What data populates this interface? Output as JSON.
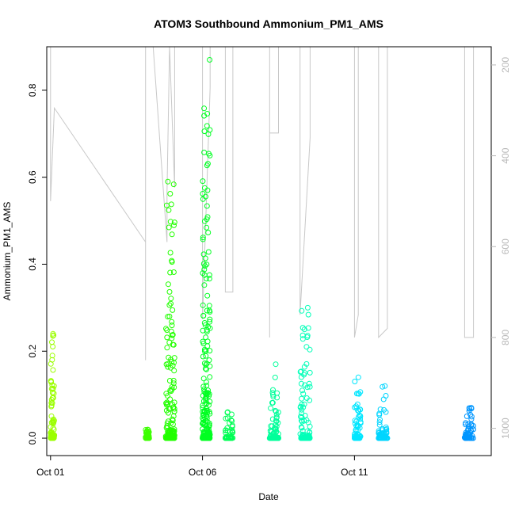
{
  "chart_data": {
    "type": "scatter",
    "title": "ATOM3 Southbound Ammonium_PM1_AMS",
    "xlabel": "Date",
    "ylabel": "Ammonium_PM1_AMS",
    "x_axis": {
      "type": "date",
      "range": [
        "2016-09-30T21:00",
        "2016-10-15T12:00"
      ],
      "ticks": [
        {
          "value": "2016-10-01T00:00",
          "label": "Oct 01"
        },
        {
          "value": "2016-10-06T00:00",
          "label": "Oct 06"
        },
        {
          "value": "2016-10-11T00:00",
          "label": "Oct 11"
        }
      ]
    },
    "y_axis": {
      "range": [
        -0.04,
        0.9
      ],
      "ticks": [
        0.0,
        0.2,
        0.4,
        0.6,
        0.8
      ],
      "tick_labels": [
        "0.0",
        "0.2",
        "0.4",
        "0.6",
        "0.8"
      ]
    },
    "y2_axis": {
      "description": "altitude/pressure trace (grey line), inverted axis",
      "range_top": 160,
      "range_bottom": 1060,
      "ticks": [
        200,
        400,
        600,
        800,
        1000
      ],
      "tick_labels": [
        "200",
        "400",
        "600",
        "800",
        "1000"
      ],
      "color": "#b8b8b8"
    },
    "point_style": "open circle",
    "color_scale": "time-ordered, yellow-green to blue",
    "series": [
      {
        "start": "2016-10-01T00:00",
        "end": "2016-10-01T03:00",
        "max": 0.24,
        "color": "#9bff00"
      },
      {
        "start": "2016-10-04T03:00",
        "end": "2016-10-04T06:00",
        "max": 0.02,
        "color": "#3cff00"
      },
      {
        "start": "2016-10-04T19:00",
        "end": "2016-10-05T02:00",
        "max": 0.59,
        "color": "#22ff00"
      },
      {
        "start": "2016-10-06T00:00",
        "end": "2016-10-06T06:00",
        "max": 0.87,
        "color": "#00ff22"
      },
      {
        "start": "2016-10-06T18:00",
        "end": "2016-10-07T00:00",
        "max": 0.06,
        "color": "#00ff55"
      },
      {
        "start": "2016-10-08T05:00",
        "end": "2016-10-08T12:00",
        "max": 0.17,
        "color": "#00ff9a"
      },
      {
        "start": "2016-10-09T05:00",
        "end": "2016-10-09T13:00",
        "max": 0.3,
        "color": "#00ffb8"
      },
      {
        "start": "2016-10-11T00:00",
        "end": "2016-10-11T05:00",
        "max": 0.14,
        "color": "#00e6ff"
      },
      {
        "start": "2016-10-11T19:00",
        "end": "2016-10-12T02:00",
        "max": 0.12,
        "color": "#00d5ff"
      },
      {
        "start": "2016-10-14T15:00",
        "end": "2016-10-14T22:00",
        "max": 0.07,
        "color": "#0096ff"
      }
    ],
    "y2_trace": [
      [
        "2016-10-01T00:00",
        160
      ],
      [
        "2016-10-01T00:00",
        500
      ],
      [
        "2016-10-01T03:00",
        295
      ],
      [
        "2016-10-04T03:00",
        590
      ],
      [
        "2016-10-04T03:00",
        850
      ],
      [
        "2016-10-04T03:00",
        160
      ],
      [
        "2016-10-04T09:00",
        160
      ],
      [
        "2016-10-04T20:00",
        590
      ],
      [
        "2016-10-04T20:00",
        480
      ],
      [
        "2016-10-04T22:00",
        160
      ],
      [
        "2016-10-05T02:00",
        470
      ],
      [
        "2016-10-05T02:00",
        160
      ],
      [
        "2016-10-06T00:00",
        160
      ],
      [
        "2016-10-06T00:00",
        760
      ],
      [
        "2016-10-06T06:00",
        250
      ],
      [
        "2016-10-06T06:00",
        160
      ],
      [
        "2016-10-06T18:00",
        160
      ],
      [
        "2016-10-06T18:00",
        700
      ],
      [
        "2016-10-07T00:00",
        700
      ],
      [
        "2016-10-07T00:00",
        160
      ],
      [
        "2016-10-08T05:00",
        160
      ],
      [
        "2016-10-08T05:00",
        800
      ],
      [
        "2016-10-08T05:00",
        350
      ],
      [
        "2016-10-08T12:00",
        350
      ],
      [
        "2016-10-08T12:00",
        160
      ],
      [
        "2016-10-09T05:00",
        160
      ],
      [
        "2016-10-09T05:00",
        750
      ],
      [
        "2016-10-09T13:00",
        360
      ],
      [
        "2016-10-09T13:00",
        160
      ],
      [
        "2016-10-11T00:00",
        160
      ],
      [
        "2016-10-11T00:00",
        800
      ],
      [
        "2016-10-11T03:00",
        750
      ],
      [
        "2016-10-11T03:00",
        160
      ],
      [
        "2016-10-11T19:00",
        160
      ],
      [
        "2016-10-11T19:00",
        800
      ],
      [
        "2016-10-12T02:00",
        780
      ],
      [
        "2016-10-12T02:00",
        160
      ],
      [
        "2016-10-14T15:00",
        160
      ],
      [
        "2016-10-14T15:00",
        800
      ],
      [
        "2016-10-14T22:00",
        800
      ],
      [
        "2016-10-14T22:00",
        160
      ]
    ]
  }
}
